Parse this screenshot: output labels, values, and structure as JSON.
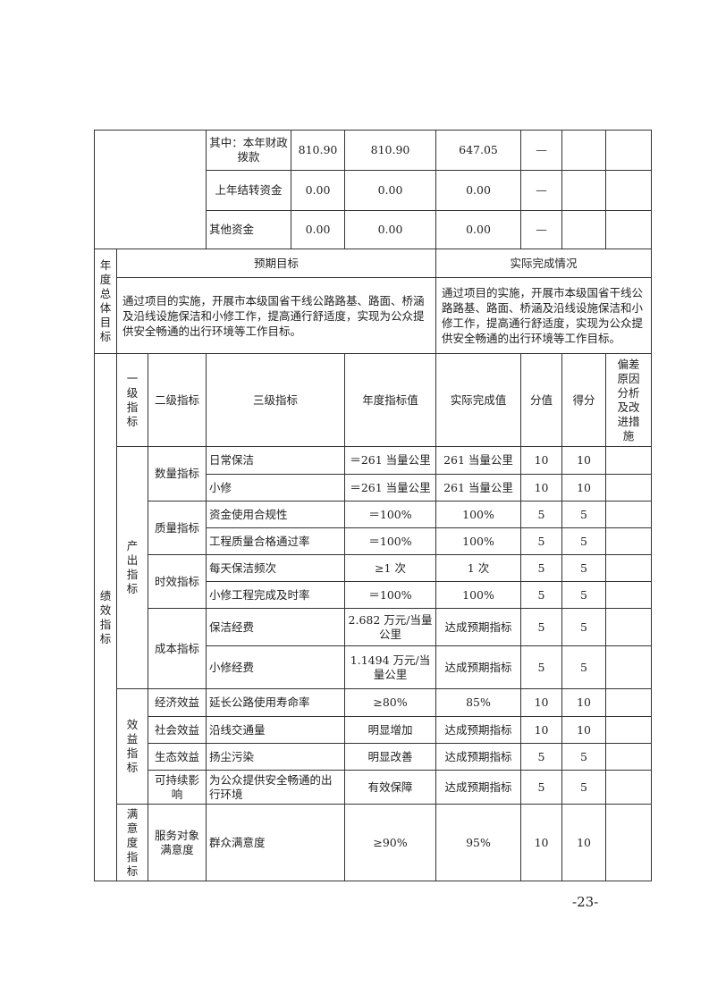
{
  "funds": [
    {
      "label": "其中：本年财政拨款",
      "annual_budget": "810.90",
      "full_year": "810.90",
      "executed": "647.05",
      "score": "—",
      "rate": "",
      "points": ""
    },
    {
      "label": "上年结转资金",
      "annual_budget": "0.00",
      "full_year": "0.00",
      "executed": "0.00",
      "score": "—",
      "rate": "",
      "points": ""
    },
    {
      "label": "其他资金",
      "annual_budget": "0.00",
      "full_year": "0.00",
      "executed": "0.00",
      "score": "—",
      "rate": "",
      "points": ""
    }
  ],
  "annual_goal": {
    "label": "年度总体目标",
    "expected_header": "预期目标",
    "actual_header": "实际完成情况",
    "expected": "通过项目的实施，开展市本级国省干线公路路基、路面、桥涵及沿线设施保洁和小修工作，提高通行舒适度，实现为公众提供安全畅通的出行环境等工作目标。",
    "actual": "通过项目的实施，开展市本级国省干线公路路基、路面、桥涵及沿线设施保洁和小修工作，提高通行舒适度，实现为公众提供安全畅通的出行环境等工作目标。"
  },
  "performance": {
    "label": "绩效指标",
    "headers": {
      "level1": "一级指标",
      "level2": "二级指标",
      "level3": "三级指标",
      "target": "年度指标值",
      "actual": "实际完成值",
      "weight": "分值",
      "score": "得分",
      "deviation": "偏差原因分析及改进措施"
    },
    "groups": [
      {
        "level1": "产出指标",
        "subs": [
          {
            "level2": "数量指标",
            "rows": [
              {
                "level3": "日常保洁",
                "target": "＝261 当量公里",
                "actual": "261 当量公里",
                "weight": "10",
                "score": "10",
                "deviation": ""
              },
              {
                "level3": "小修",
                "target": "＝261 当量公里",
                "actual": "261 当量公里",
                "weight": "10",
                "score": "10",
                "deviation": ""
              }
            ]
          },
          {
            "level2": "质量指标",
            "rows": [
              {
                "level3": "资金使用合规性",
                "target": "＝100%",
                "actual": "100%",
                "weight": "5",
                "score": "5",
                "deviation": ""
              },
              {
                "level3": "工程质量合格通过率",
                "target": "＝100%",
                "actual": "100%",
                "weight": "5",
                "score": "5",
                "deviation": ""
              }
            ]
          },
          {
            "level2": "时效指标",
            "rows": [
              {
                "level3": "每天保洁频次",
                "target": "≥1 次",
                "actual": "1 次",
                "weight": "5",
                "score": "5",
                "deviation": ""
              },
              {
                "level3": "小修工程完成及时率",
                "target": "＝100%",
                "actual": "100%",
                "weight": "5",
                "score": "5",
                "deviation": ""
              }
            ]
          },
          {
            "level2": "成本指标",
            "rows": [
              {
                "level3": "保洁经费",
                "target": "2.682 万元/当量公里",
                "actual": "达成预期指标",
                "weight": "5",
                "score": "5",
                "deviation": ""
              },
              {
                "level3": "小修经费",
                "target": "1.1494 万元/当量公里",
                "actual": "达成预期指标",
                "weight": "5",
                "score": "5",
                "deviation": ""
              }
            ]
          }
        ]
      },
      {
        "level1": "效益指标",
        "subs": [
          {
            "level2": "经济效益",
            "rows": [
              {
                "level3": "延长公路使用寿命率",
                "target": "≥80%",
                "actual": "85%",
                "weight": "10",
                "score": "10",
                "deviation": ""
              }
            ]
          },
          {
            "level2": "社会效益",
            "rows": [
              {
                "level3": "沿线交通量",
                "target": "明显增加",
                "actual": "达成预期指标",
                "weight": "10",
                "score": "10",
                "deviation": ""
              }
            ]
          },
          {
            "level2": "生态效益",
            "rows": [
              {
                "level3": "扬尘污染",
                "target": "明显改善",
                "actual": "达成预期指标",
                "weight": "5",
                "score": "5",
                "deviation": ""
              }
            ]
          },
          {
            "level2": "可持续影响",
            "rows": [
              {
                "level3": "为公众提供安全畅通的出行环境",
                "target": "有效保障",
                "actual": "达成预期指标",
                "weight": "5",
                "score": "5",
                "deviation": ""
              }
            ]
          }
        ]
      },
      {
        "level1": "满意度指标",
        "subs": [
          {
            "level2": "服务对象满意度",
            "rows": [
              {
                "level3": "群众满意度",
                "target": "≥90%",
                "actual": "95%",
                "weight": "10",
                "score": "10",
                "deviation": ""
              }
            ]
          }
        ]
      }
    ]
  },
  "page_number": "-23-"
}
